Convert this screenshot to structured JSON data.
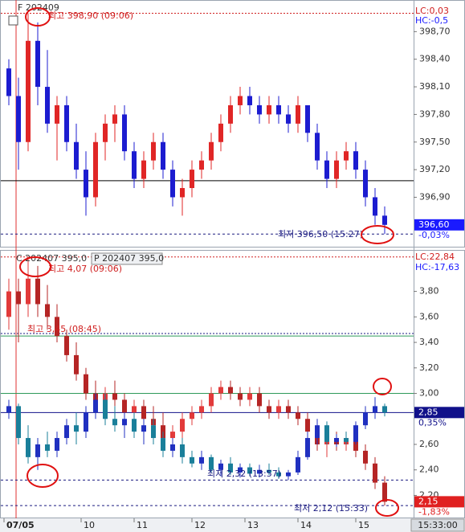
{
  "chart_data": [
    {
      "type": "candlestick",
      "xlim": [
        -0.5,
        42
      ],
      "ylim": [
        396.38,
        399.0
      ],
      "yticks": [
        {
          "value": 396.9,
          "label": "396,90"
        },
        {
          "value": 397.2,
          "label": "397,20"
        },
        {
          "value": 397.5,
          "label": "397,50"
        },
        {
          "value": 397.8,
          "label": "397,80"
        },
        {
          "value": 398.1,
          "label": "398,10"
        },
        {
          "value": 398.4,
          "label": "398,40"
        },
        {
          "value": 398.7,
          "label": "398,70"
        }
      ],
      "info": [
        "LC:0,03",
        "HC:-0,5"
      ],
      "annotations": [
        "최고 398,90 (09:06)",
        "최저 396,50 (15:27)"
      ],
      "hlines": [
        {
          "value": 398.9,
          "color": "#d02020",
          "dash": "2,2"
        },
        {
          "value": 397.08,
          "color": "#000000",
          "dash": "none"
        },
        {
          "value": 396.5,
          "color": "#1a1a80",
          "dash": "3,3"
        }
      ],
      "last_labels": [
        {
          "value": 396.6,
          "label": "396,60",
          "change": "-0,03%",
          "color": "#1a1aff"
        }
      ],
      "series": [
        {
          "name": "F 202409",
          "up_color": "#e02626",
          "down_color": "#1c1cd0",
          "open": [
            398.3,
            398.0,
            397.5,
            398.6,
            398.1,
            397.7,
            397.9,
            397.5,
            397.2,
            396.9,
            397.5,
            397.7,
            397.8,
            397.4,
            397.1,
            397.3,
            397.5,
            397.2,
            396.9,
            397.0,
            397.2,
            397.3,
            397.5,
            397.7,
            397.9,
            398.0,
            397.9,
            397.8,
            397.9,
            397.8,
            397.7,
            397.9,
            397.6,
            397.3,
            397.1,
            397.3,
            397.4,
            397.2,
            396.9,
            396.7
          ],
          "high": [
            398.4,
            398.2,
            398.9,
            398.8,
            398.5,
            398.0,
            398.0,
            397.7,
            397.4,
            397.6,
            397.8,
            397.9,
            397.9,
            397.5,
            397.4,
            397.6,
            397.6,
            397.3,
            397.1,
            397.3,
            397.4,
            397.6,
            397.8,
            398.0,
            398.1,
            398.1,
            398.0,
            398.0,
            398.0,
            397.9,
            398.0,
            397.9,
            397.7,
            397.4,
            397.4,
            397.5,
            397.5,
            397.3,
            397.0,
            396.8
          ],
          "low": [
            397.9,
            397.2,
            397.4,
            397.9,
            397.6,
            397.3,
            397.4,
            397.1,
            396.7,
            396.8,
            397.3,
            397.5,
            397.3,
            397.0,
            397.0,
            397.2,
            397.1,
            396.8,
            396.7,
            396.9,
            397.1,
            397.2,
            397.4,
            397.6,
            397.8,
            397.8,
            397.7,
            397.7,
            397.7,
            397.6,
            397.6,
            397.5,
            397.2,
            397.0,
            397.0,
            397.2,
            397.1,
            396.8,
            396.6,
            396.5
          ],
          "close": [
            398.0,
            397.5,
            398.6,
            398.1,
            397.7,
            397.9,
            397.5,
            397.2,
            396.9,
            397.5,
            397.7,
            397.8,
            397.4,
            397.1,
            397.3,
            397.5,
            397.2,
            396.9,
            397.0,
            397.2,
            397.3,
            397.5,
            397.7,
            397.9,
            398.0,
            397.9,
            397.8,
            397.9,
            397.8,
            397.7,
            397.9,
            397.6,
            397.3,
            397.1,
            397.3,
            397.4,
            397.2,
            396.9,
            396.7,
            396.6
          ]
        }
      ]
    },
    {
      "type": "candlestick",
      "xlim": [
        -0.5,
        42
      ],
      "ylim": [
        2.02,
        4.1
      ],
      "yticks": [
        {
          "value": 2.2,
          "label": "2,20"
        },
        {
          "value": 2.4,
          "label": "2,40"
        },
        {
          "value": 2.6,
          "label": "2,60"
        },
        {
          "value": 3,
          "label": "3,00"
        },
        {
          "value": 3.2,
          "label": "3,20"
        },
        {
          "value": 3.4,
          "label": "3,40"
        },
        {
          "value": 3.6,
          "label": "3,60"
        },
        {
          "value": 3.8,
          "label": "3,80"
        }
      ],
      "xticks": [
        {
          "value": -0.5,
          "label": "07/05"
        },
        {
          "value": 7.5,
          "label": "10"
        },
        {
          "value": 13,
          "label": "11"
        },
        {
          "value": 19,
          "label": "12"
        },
        {
          "value": 24.5,
          "label": "13"
        },
        {
          "value": 30,
          "label": "14"
        },
        {
          "value": 36,
          "label": "15"
        }
      ],
      "cursor_label": "15:33:00",
      "info": [
        "LC:22,84",
        "HC:-17,63"
      ],
      "annotations": [
        "최고 4,07 (09:06)",
        "최고 3,45 (08:45)",
        "최저 2,32 (13:57)",
        "최저 2,12 (15:33)"
      ],
      "hlines": [
        {
          "value": 4.07,
          "color": "#d02020",
          "dash": "2,2"
        },
        {
          "value": 3.47,
          "color": "#1a1a80",
          "dash": "2,2"
        },
        {
          "value": 3.45,
          "color": "#2e9a5a",
          "dash": "none"
        },
        {
          "value": 3.0,
          "color": "#2e9a5a",
          "dash": "none"
        },
        {
          "value": 2.85,
          "color": "#10108a",
          "dash": "none"
        },
        {
          "value": 2.32,
          "color": "#1a1a80",
          "dash": "3,3"
        },
        {
          "value": 2.12,
          "color": "#1a1a80",
          "dash": "3,3"
        }
      ],
      "last_labels": [
        {
          "value": 2.85,
          "label": "2,85",
          "change": "0,35%",
          "color": "#10108a"
        },
        {
          "value": 2.15,
          "label": "2,15",
          "change": "-1,83%",
          "color": "#e02020"
        }
      ],
      "series": [
        {
          "name": "C 202407 395,0",
          "up_color": "#e23a3a",
          "down_color": "#b52525",
          "open": [
            3.6,
            3.8,
            3.7,
            3.9,
            3.7,
            3.6,
            3.45,
            3.3,
            3.15,
            3.0,
            2.9,
            3.0,
            2.95,
            2.85,
            2.9,
            2.8,
            2.75,
            2.65,
            2.7,
            2.8,
            2.85,
            2.9,
            3.0,
            3.05,
            3.0,
            2.95,
            3.0,
            2.9,
            2.85,
            2.9,
            2.85,
            2.8,
            2.7,
            2.6,
            2.65,
            2.6,
            2.65,
            2.55,
            2.45,
            2.3
          ],
          "high": [
            3.9,
            3.9,
            4.07,
            4.0,
            3.85,
            3.7,
            3.5,
            3.4,
            3.2,
            3.1,
            3.05,
            3.1,
            3.0,
            2.95,
            2.95,
            2.9,
            2.85,
            2.75,
            2.85,
            2.9,
            2.95,
            3.05,
            3.1,
            3.1,
            3.05,
            3.05,
            3.05,
            2.95,
            2.95,
            2.95,
            2.9,
            2.85,
            2.75,
            2.7,
            2.7,
            2.7,
            2.7,
            2.6,
            2.5,
            2.35
          ],
          "low": [
            3.5,
            3.4,
            3.6,
            3.6,
            3.5,
            3.4,
            3.25,
            3.1,
            2.95,
            2.85,
            2.85,
            2.9,
            2.8,
            2.75,
            2.75,
            2.7,
            2.6,
            2.55,
            2.65,
            2.75,
            2.8,
            2.85,
            2.95,
            2.95,
            2.9,
            2.9,
            2.85,
            2.8,
            2.8,
            2.8,
            2.75,
            2.65,
            2.55,
            2.5,
            2.55,
            2.55,
            2.5,
            2.4,
            2.25,
            2.12
          ],
          "close": [
            3.8,
            3.7,
            3.9,
            3.7,
            3.6,
            3.45,
            3.3,
            3.15,
            3.0,
            2.9,
            3.0,
            2.95,
            2.85,
            2.9,
            2.8,
            2.75,
            2.65,
            2.7,
            2.8,
            2.85,
            2.9,
            3.0,
            3.05,
            3.0,
            2.95,
            3.0,
            2.9,
            2.85,
            2.9,
            2.85,
            2.8,
            2.7,
            2.6,
            2.65,
            2.6,
            2.65,
            2.55,
            2.45,
            2.3,
            2.15
          ]
        },
        {
          "name": "P 202407 395,0",
          "up_color": "#2030c0",
          "down_color": "#1a7f9a",
          "open": [
            2.85,
            2.9,
            2.65,
            2.5,
            2.6,
            2.55,
            2.65,
            2.75,
            2.7,
            2.85,
            2.95,
            2.8,
            2.75,
            2.8,
            2.7,
            2.75,
            2.65,
            2.55,
            2.6,
            2.5,
            2.45,
            2.5,
            2.4,
            2.45,
            2.38,
            2.42,
            2.37,
            2.4,
            2.38,
            2.35,
            2.38,
            2.5,
            2.65,
            2.75,
            2.62,
            2.65,
            2.62,
            2.75,
            2.85,
            2.9
          ],
          "high": [
            2.95,
            2.92,
            2.75,
            2.65,
            2.7,
            2.7,
            2.8,
            2.85,
            2.9,
            3.0,
            3.0,
            2.9,
            2.85,
            2.85,
            2.8,
            2.8,
            2.7,
            2.65,
            2.65,
            2.55,
            2.55,
            2.52,
            2.48,
            2.5,
            2.45,
            2.45,
            2.44,
            2.45,
            2.42,
            2.4,
            2.55,
            2.7,
            2.8,
            2.78,
            2.68,
            2.7,
            2.78,
            2.9,
            2.97,
            2.92
          ],
          "low": [
            2.8,
            2.6,
            2.45,
            2.4,
            2.5,
            2.5,
            2.6,
            2.6,
            2.65,
            2.8,
            2.75,
            2.7,
            2.65,
            2.65,
            2.6,
            2.6,
            2.5,
            2.5,
            2.45,
            2.42,
            2.4,
            2.38,
            2.35,
            2.36,
            2.34,
            2.35,
            2.34,
            2.36,
            2.33,
            2.32,
            2.36,
            2.48,
            2.6,
            2.6,
            2.58,
            2.6,
            2.6,
            2.72,
            2.8,
            2.82
          ],
          "close": [
            2.9,
            2.65,
            2.5,
            2.6,
            2.55,
            2.65,
            2.75,
            2.7,
            2.85,
            2.95,
            2.8,
            2.75,
            2.8,
            2.7,
            2.75,
            2.65,
            2.55,
            2.6,
            2.5,
            2.45,
            2.5,
            2.4,
            2.45,
            2.38,
            2.42,
            2.37,
            2.4,
            2.38,
            2.35,
            2.38,
            2.5,
            2.65,
            2.75,
            2.62,
            2.65,
            2.62,
            2.75,
            2.85,
            2.9,
            2.85
          ]
        }
      ]
    }
  ]
}
